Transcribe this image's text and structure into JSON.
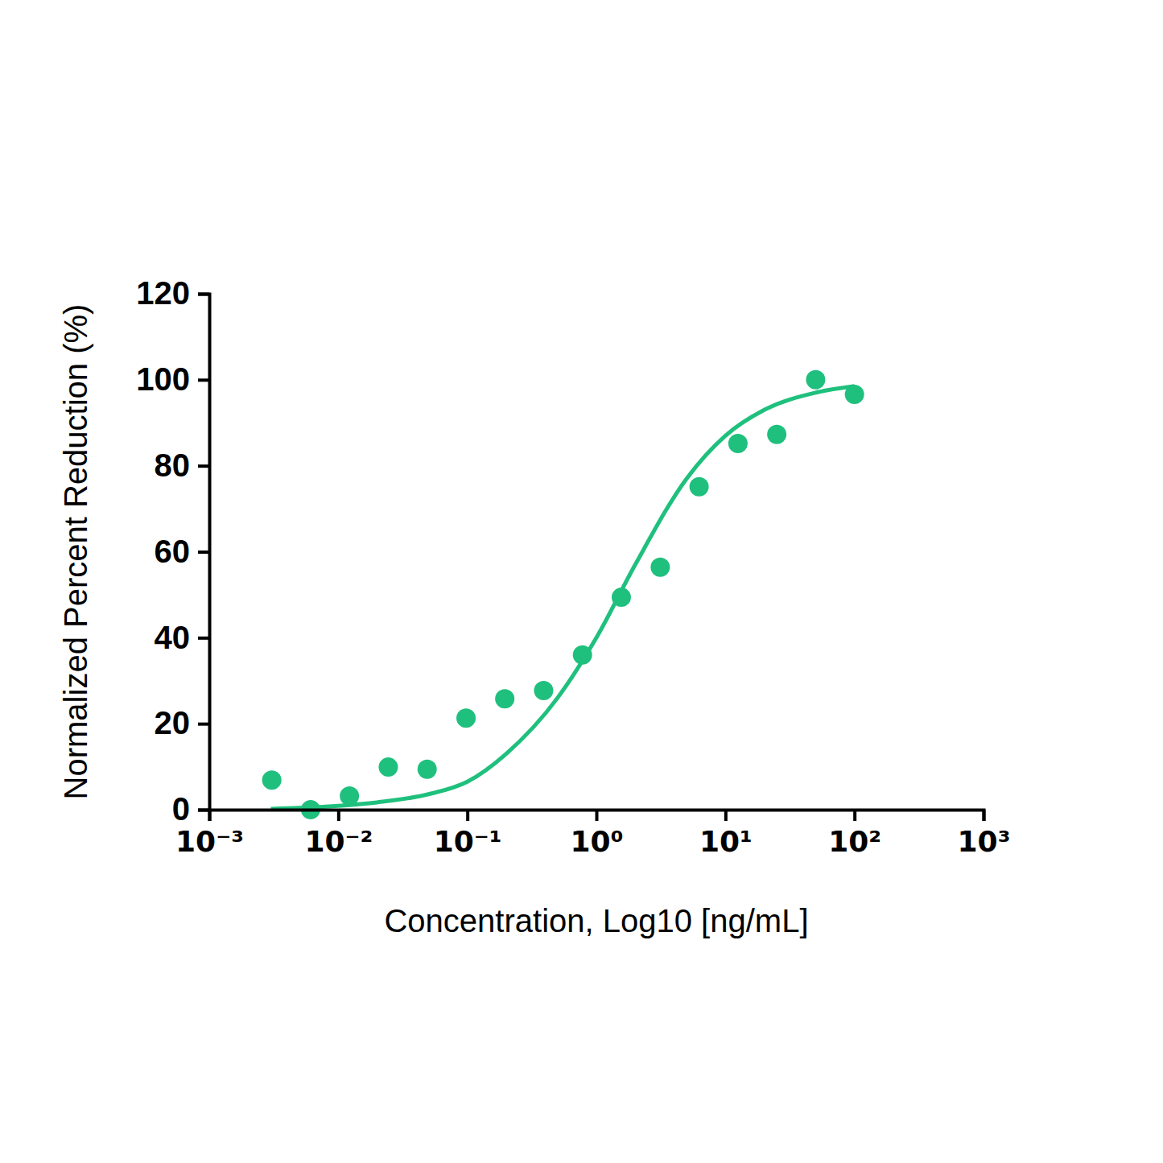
{
  "chart_data": {
    "type": "scatter",
    "x_label": "Concentration, Log10 [ng/mL]",
    "y_label": "Normalized Percent Reduction (%)",
    "log": "x",
    "grid": false,
    "xlim": [
      0.001,
      1000
    ],
    "xticks": [
      {
        "value": 0.001,
        "label": "10⁻³"
      },
      {
        "value": 0.01,
        "label": "10⁻²"
      },
      {
        "value": 0.1,
        "label": "10⁻¹"
      },
      {
        "value": 1,
        "label": "10⁰"
      },
      {
        "value": 10,
        "label": "10¹"
      },
      {
        "value": 100,
        "label": "10²"
      },
      {
        "value": 1000,
        "label": "10³"
      }
    ],
    "ylim": [
      0,
      120
    ],
    "yticks": [
      0,
      20,
      40,
      60,
      80,
      100,
      120
    ],
    "series": [
      {
        "type": "scatter",
        "marker": "circle",
        "color": "#1fc07d",
        "x": [
          0.00305,
          0.0061,
          0.0122,
          0.0244,
          0.0488,
          0.0977,
          0.195,
          0.39,
          0.78,
          1.56,
          3.125,
          6.25,
          12.5,
          25,
          50,
          100
        ],
        "values": [
          6.9,
          0,
          3.2,
          9.9,
          9.4,
          21.3,
          25.8,
          27.7,
          36,
          49.4,
          56.4,
          75.1,
          85.2,
          87.3,
          100,
          96.6
        ]
      },
      {
        "type": "line",
        "line_style": "solid",
        "color": "#1fc07d",
        "x": [
          0.003,
          0.005,
          0.01,
          0.02,
          0.05,
          0.1,
          0.2,
          0.5,
          1,
          2,
          5,
          10,
          20,
          50,
          100
        ],
        "values": [
          0.2,
          0.4,
          0.9,
          1.7,
          3.6,
          6.5,
          13,
          26,
          40,
          57,
          77,
          87,
          93,
          97,
          98.5
        ]
      }
    ]
  }
}
